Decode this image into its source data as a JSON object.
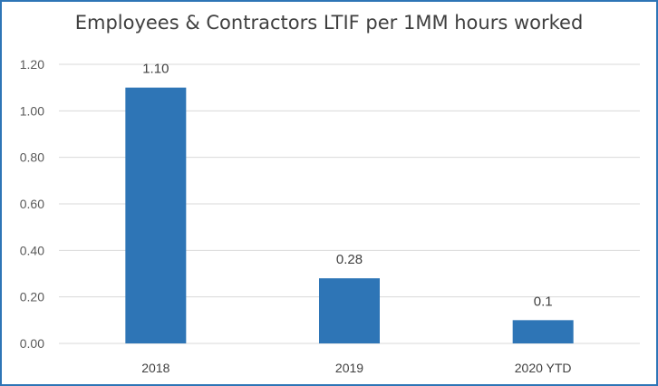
{
  "chart_data": {
    "type": "bar",
    "title": "Employees & Contractors LTIF per 1MM hours worked",
    "categories": [
      "2018",
      "2019",
      "2020 YTD"
    ],
    "values": [
      1.1,
      0.28,
      0.1
    ],
    "data_labels": [
      "1.10",
      "0.28",
      "0.1"
    ],
    "xlabel": "",
    "ylabel": "",
    "ylim": [
      0,
      1.2
    ],
    "yticks": [
      0,
      0.2,
      0.4,
      0.6,
      0.8,
      1.0,
      1.2
    ],
    "ytick_labels": [
      "0.00",
      "0.20",
      "0.40",
      "0.60",
      "0.80",
      "1.00",
      "1.20"
    ],
    "grid": true,
    "legend": "none",
    "colors": {
      "bar": "#2e75b6",
      "grid": "#d9d9d9",
      "frame": "#2e75b6"
    }
  }
}
